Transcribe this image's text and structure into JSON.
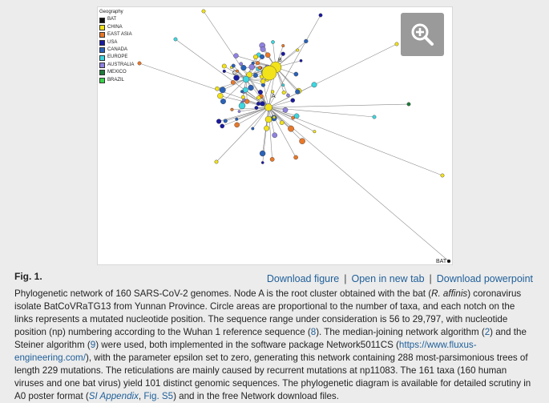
{
  "figure": {
    "legend_title": "Geography",
    "legend": [
      {
        "label": "BAT",
        "color": "#111111"
      },
      {
        "label": "CHINA",
        "color": "#f2e21a"
      },
      {
        "label": "EAST ASIA",
        "color": "#e8782a"
      },
      {
        "label": "USA",
        "color": "#1a1aa0"
      },
      {
        "label": "CANADA",
        "color": "#2a62b8"
      },
      {
        "label": "EUROPE",
        "color": "#3fd6e0"
      },
      {
        "label": "AUSTRALIA",
        "color": "#8f82e0"
      },
      {
        "label": "MEXICO",
        "color": "#1f7a3a"
      },
      {
        "label": "BRAZIL",
        "color": "#3ad24a"
      }
    ],
    "node_labels": {
      "a": "A",
      "b": "B",
      "c": "C",
      "bat": "BAT"
    },
    "zoom_icon": "zoom-in-icon"
  },
  "fig_label": "Fig. 1.",
  "links": {
    "download_figure": "Download figure",
    "open_new_tab": "Open in new tab",
    "download_powerpoint": "Download powerpoint",
    "separator": "|"
  },
  "caption": {
    "s1": "Phylogenetic network of 160 SARS-CoV-2 genomes. Node A is the root cluster obtained with the bat (",
    "species": "R. affinis",
    "s2": ") coronavirus isolate BatCoVRaTG13 from Yunnan Province. Circle areas are proportional to the number of taxa, and each notch on the links represents a mutated nucleotide position. The sequence range under consideration is 56 to 29,797, with nucleotide position (np) numbering according to the Wuhan 1 reference sequence (",
    "ref8": "8",
    "s3": "). The median-joining network algorithm (",
    "ref2": "2",
    "s4": ") and the Steiner algorithm (",
    "ref9": "9",
    "s5": ") were used, both implemented in the software package Network5011CS (",
    "url": "https://www.fluxus-engineering.com/",
    "s6": "), with the parameter epsilon set to zero, generating this network containing 288 most-parsimonious trees of length 229 mutations. The reticulations are mainly caused by recurrent mutations at np11083. The 161 taxa (160 human viruses and one bat virus) yield 101 distinct genomic sequences. The phylogenetic diagram is available for detailed scrutiny in A0 poster format (",
    "si": "SI Appendix",
    "s7": ", ",
    "figs5": "Fig. S5",
    "s8": ") and in the free Network download files."
  }
}
